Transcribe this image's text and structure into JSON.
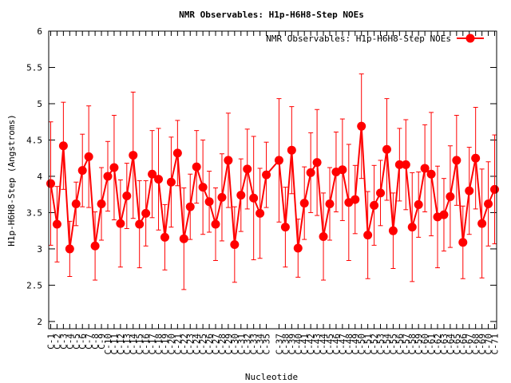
{
  "colors": {
    "series": "#ff0000",
    "text": "#000000",
    "axis": "#000000"
  },
  "chart_data": {
    "type": "line",
    "title": "NMR Observables: H1p-H6H8-Step NOEs",
    "xlabel": "Nucleotide",
    "ylabel": "H1p-H6H8-Step (Angstroms)",
    "ylim": [
      1.9,
      6
    ],
    "yticks": [
      2,
      2.5,
      3,
      3.5,
      4,
      4.5,
      5,
      5.5,
      6
    ],
    "ytick_labels": [
      "2",
      "2.5",
      "3",
      "3.5",
      "4",
      "4.5",
      "5",
      "5.5",
      "6"
    ],
    "grid": false,
    "legend_position": "top-right",
    "legend_label": "NMR Observables: H1p-H6H8-Step NOEs",
    "x": [
      1,
      2,
      3,
      4,
      5,
      6,
      7,
      8,
      9,
      10,
      11,
      12,
      13,
      14,
      15,
      16,
      17,
      18,
      19,
      20,
      21,
      22,
      23,
      24,
      25,
      26,
      27,
      28,
      29,
      30,
      31,
      32,
      33,
      34,
      35,
      37,
      38,
      39,
      40,
      41,
      42,
      43,
      44,
      45,
      46,
      47,
      48,
      49,
      50,
      51,
      52,
      53,
      54,
      55,
      56,
      57,
      58,
      59,
      60,
      61,
      62,
      63,
      64,
      65,
      66,
      67,
      68,
      69,
      70,
      71
    ],
    "xtick_labels": [
      "C-1",
      "C-2",
      "C-3",
      "C-4",
      "C-5",
      "C-6",
      "C-7",
      "C-8",
      "C-9",
      "C-10",
      "C-11",
      "C-12",
      "C-13",
      "C-14",
      "C-15",
      "C-16",
      "C-17",
      "C-18",
      "C-19",
      "C-20",
      "C-21",
      "C-22",
      "C-23",
      "C-24",
      "C-25",
      "C-26",
      "C-27",
      "C-28",
      "C-29",
      "C-30",
      "C-31",
      "C-32",
      "C-33",
      "C-34",
      "C-35",
      "C-37",
      "C-38",
      "C-39",
      "C-40",
      "C-41",
      "C-42",
      "C-43",
      "C-44",
      "C-45",
      "C-46",
      "C-47",
      "C-48",
      "C-49",
      "C-50",
      "C-51",
      "C-52",
      "C-53",
      "C-54",
      "C-55",
      "C-56",
      "C-57",
      "C-58",
      "C-59",
      "C-60",
      "C-61",
      "C-62",
      "C-63",
      "C-64",
      "C-65",
      "C-66",
      "C-67",
      "C-68",
      "C-69",
      "C-70",
      "C-71"
    ],
    "series": [
      {
        "name": "NMR Observables: H1p-H6H8-Step NOEs",
        "values": [
          3.9,
          3.34,
          4.42,
          3.0,
          3.62,
          4.08,
          4.27,
          3.04,
          3.62,
          4.0,
          4.12,
          3.35,
          3.73,
          4.29,
          3.34,
          3.49,
          4.03,
          3.96,
          3.16,
          3.92,
          4.32,
          3.14,
          3.58,
          4.13,
          3.85,
          3.65,
          3.34,
          3.71,
          4.22,
          3.06,
          3.74,
          4.1,
          3.7,
          3.49,
          4.02,
          4.22,
          3.3,
          4.36,
          3.01,
          3.63,
          4.05,
          4.19,
          3.17,
          3.62,
          4.06,
          4.09,
          3.64,
          3.68,
          4.69,
          3.19,
          3.6,
          3.77,
          4.37,
          3.25,
          4.16,
          4.16,
          3.3,
          3.61,
          4.11,
          4.03,
          3.44,
          3.47,
          3.72,
          4.22,
          3.09,
          3.8,
          4.25,
          3.35,
          3.62,
          3.82
        ],
        "err": [
          0.85,
          0.52,
          0.6,
          0.38,
          0.3,
          0.5,
          0.7,
          0.47,
          0.5,
          0.48,
          0.72,
          0.6,
          0.45,
          0.87,
          0.6,
          0.45,
          0.6,
          0.7,
          0.45,
          0.62,
          0.45,
          0.7,
          0.45,
          0.5,
          0.65,
          0.42,
          0.5,
          0.6,
          0.65,
          0.52,
          0.5,
          0.55,
          0.85,
          0.62,
          0.45,
          0.85,
          0.55,
          0.6,
          0.4,
          0.5,
          0.55,
          0.73,
          0.6,
          0.5,
          0.55,
          0.7,
          0.8,
          0.47,
          0.72,
          0.6,
          0.55,
          0.45,
          0.7,
          0.52,
          0.5,
          0.62,
          0.75,
          0.45,
          0.6,
          0.85,
          0.7,
          0.5,
          0.7,
          0.62,
          0.5,
          0.6,
          0.7,
          0.75,
          0.58,
          0.75
        ]
      }
    ]
  }
}
